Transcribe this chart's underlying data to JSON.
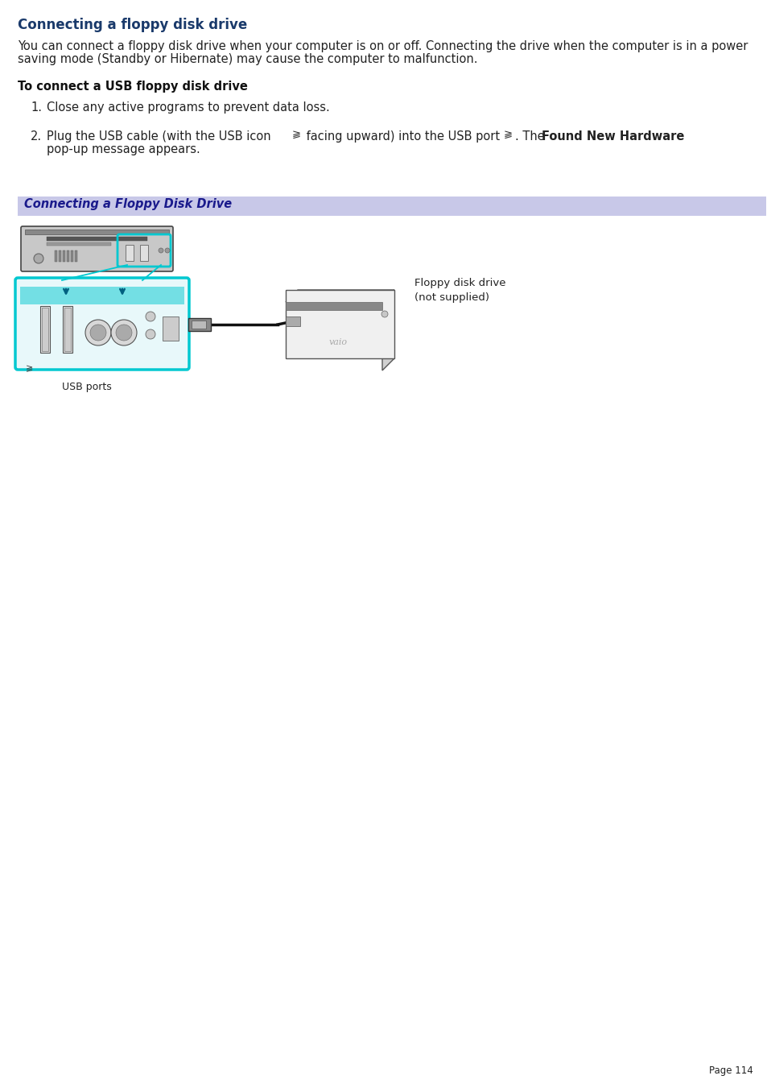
{
  "title": "Connecting a floppy disk drive",
  "title_color": "#1a3a6b",
  "background_color": "#ffffff",
  "subtitle": "To connect a USB floppy disk drive",
  "step1": "Close any active programs to prevent data loss.",
  "banner_text": "Connecting a Floppy Disk Drive",
  "banner_bg": "#c8c8e8",
  "banner_text_color": "#1a1a8c",
  "usb_ports_label": "USB ports",
  "floppy_label1": "Floppy disk drive",
  "floppy_label2": "(not supplied)",
  "page_label": "Page 114",
  "body_fontsize": 10.5,
  "title_fontsize": 12,
  "subtitle_fontsize": 10.5,
  "banner_fontsize": 10.5
}
